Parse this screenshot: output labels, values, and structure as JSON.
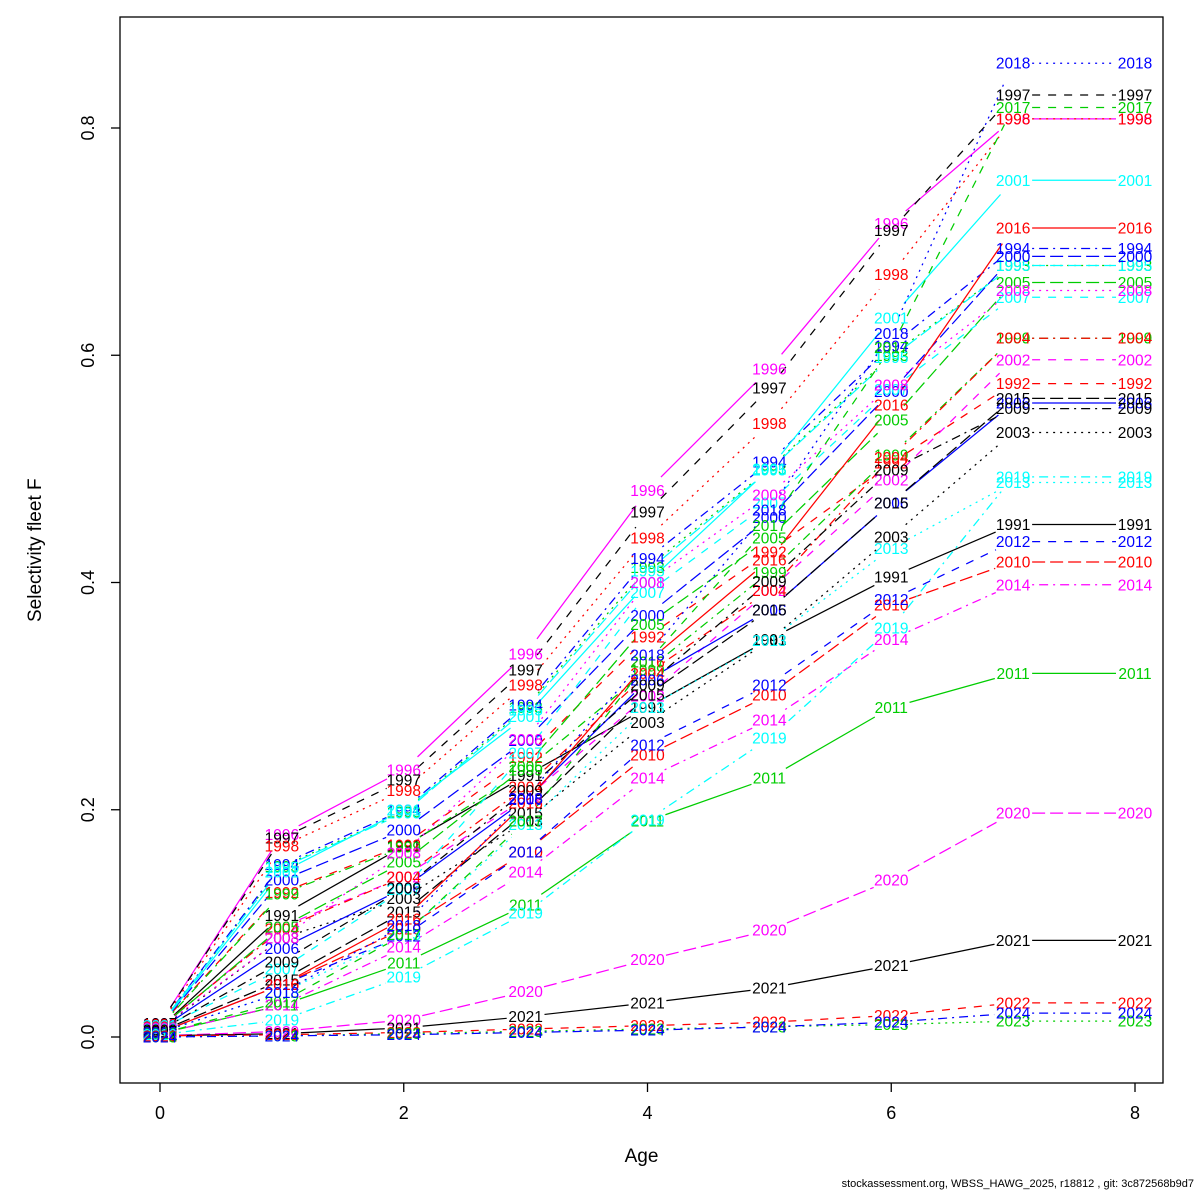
{
  "footer": "stockassessment.org, WBSS_HAWG_2025, r18812 , git: 3c872568b9d7",
  "chart_data": {
    "type": "line",
    "title": "",
    "xlabel": "Age",
    "ylabel": "Selectivity fleet F",
    "x": [
      0,
      1,
      2,
      3,
      4,
      5,
      6,
      7,
      8
    ],
    "xtick_labels": [
      "0",
      "2",
      "4",
      "6",
      "8"
    ],
    "xticks": [
      0,
      2,
      4,
      6,
      8
    ],
    "ytick_labels": [
      "0.0",
      "0.2",
      "0.4",
      "0.6",
      "0.8"
    ],
    "yticks": [
      0.0,
      0.2,
      0.4,
      0.6,
      0.8
    ],
    "xlim": [
      -0.33,
      8.23
    ],
    "ylim": [
      -0.04,
      0.9
    ],
    "grid": false,
    "legend": "year labels drawn on each line at every age point",
    "series": [
      {
        "name": "1991",
        "color": "#000000",
        "dash": "solid",
        "values": [
          0.008,
          0.107,
          0.168,
          0.23,
          0.29,
          0.35,
          0.405,
          0.451,
          0.451
        ]
      },
      {
        "name": "1992",
        "color": "#FF0000",
        "dash": "dashed",
        "values": [
          0.01,
          0.127,
          0.169,
          0.246,
          0.352,
          0.427,
          0.505,
          0.575,
          0.575
        ]
      },
      {
        "name": "1993",
        "color": "#00CD00",
        "dash": "dotted",
        "values": [
          0.011,
          0.15,
          0.198,
          0.29,
          0.413,
          0.5,
          0.6,
          0.679,
          0.679
        ]
      },
      {
        "name": "1994",
        "color": "#0000FF",
        "dash": "dotdash",
        "values": [
          0.011,
          0.152,
          0.2,
          0.292,
          0.421,
          0.506,
          0.608,
          0.694,
          0.694
        ]
      },
      {
        "name": "1995",
        "color": "#00FFFF",
        "dash": "longdash",
        "values": [
          0.011,
          0.149,
          0.197,
          0.288,
          0.41,
          0.499,
          0.598,
          0.679,
          0.679
        ]
      },
      {
        "name": "1996",
        "color": "#FF00FF",
        "dash": "solid",
        "values": [
          0.012,
          0.178,
          0.235,
          0.337,
          0.481,
          0.588,
          0.716,
          0.808,
          0.808
        ]
      },
      {
        "name": "1997",
        "color": "#000000",
        "dash": "dashed",
        "values": [
          0.012,
          0.175,
          0.226,
          0.323,
          0.462,
          0.571,
          0.71,
          0.829,
          0.829
        ]
      },
      {
        "name": "1998",
        "color": "#FF0000",
        "dash": "dotted",
        "values": [
          0.011,
          0.168,
          0.217,
          0.31,
          0.439,
          0.54,
          0.671,
          0.808,
          0.808
        ]
      },
      {
        "name": "1999",
        "color": "#00CD00",
        "dash": "dotdash",
        "values": [
          0.009,
          0.126,
          0.167,
          0.235,
          0.323,
          0.409,
          0.512,
          0.615,
          0.615
        ]
      },
      {
        "name": "2000",
        "color": "#0000FF",
        "dash": "longdash",
        "values": [
          0.01,
          0.138,
          0.182,
          0.261,
          0.371,
          0.457,
          0.568,
          0.687,
          0.687
        ]
      },
      {
        "name": "2001",
        "color": "#00FFFF",
        "dash": "solid",
        "values": [
          0.01,
          0.145,
          0.2,
          0.282,
          0.4,
          0.5,
          0.633,
          0.754,
          0.754
        ]
      },
      {
        "name": "2002",
        "color": "#FF00FF",
        "dash": "dashed",
        "values": [
          0.008,
          0.097,
          0.141,
          0.21,
          0.3,
          0.393,
          0.49,
          0.596,
          0.596
        ]
      },
      {
        "name": "2003",
        "color": "#000000",
        "dash": "dotted",
        "values": [
          0.007,
          0.087,
          0.122,
          0.19,
          0.277,
          0.349,
          0.44,
          0.532,
          0.532
        ]
      },
      {
        "name": "2004",
        "color": "#FF0000",
        "dash": "dotdash",
        "values": [
          0.009,
          0.095,
          0.141,
          0.22,
          0.32,
          0.393,
          0.51,
          0.615,
          0.615
        ]
      },
      {
        "name": "2005",
        "color": "#00CD00",
        "dash": "longdash",
        "values": [
          0.008,
          0.097,
          0.154,
          0.238,
          0.363,
          0.439,
          0.543,
          0.664,
          0.664
        ]
      },
      {
        "name": "2006",
        "color": "#0000FF",
        "dash": "solid",
        "values": [
          0.007,
          0.078,
          0.131,
          0.209,
          0.314,
          0.376,
          0.47,
          0.558,
          0.558
        ]
      },
      {
        "name": "2007",
        "color": "#00FFFF",
        "dash": "dashed",
        "values": [
          0.007,
          0.06,
          0.13,
          0.25,
          0.391,
          0.47,
          0.57,
          0.651,
          0.651
        ]
      },
      {
        "name": "2008",
        "color": "#FF00FF",
        "dash": "dotted",
        "values": [
          0.008,
          0.087,
          0.162,
          0.262,
          0.4,
          0.477,
          0.574,
          0.657,
          0.657
        ]
      },
      {
        "name": "2009",
        "color": "#000000",
        "dash": "dotdash",
        "values": [
          0.006,
          0.066,
          0.131,
          0.217,
          0.31,
          0.401,
          0.499,
          0.553,
          0.553
        ]
      },
      {
        "name": "2010",
        "color": "#FF0000",
        "dash": "longdash",
        "values": [
          0.004,
          0.046,
          0.095,
          0.163,
          0.248,
          0.301,
          0.38,
          0.418,
          0.418
        ]
      },
      {
        "name": "2011",
        "color": "#00CD00",
        "dash": "solid",
        "values": [
          0.003,
          0.028,
          0.065,
          0.116,
          0.19,
          0.228,
          0.29,
          0.32,
          0.32
        ]
      },
      {
        "name": "2012",
        "color": "#0000FF",
        "dash": "dashed",
        "values": [
          0.004,
          0.046,
          0.089,
          0.163,
          0.257,
          0.31,
          0.385,
          0.436,
          0.436
        ]
      },
      {
        "name": "2013",
        "color": "#00FFFF",
        "dash": "dotted",
        "values": [
          0.004,
          0.039,
          0.09,
          0.187,
          0.29,
          0.349,
          0.43,
          0.488,
          0.488
        ]
      },
      {
        "name": "2014",
        "color": "#FF00FF",
        "dash": "dotdash",
        "values": [
          0.003,
          0.028,
          0.079,
          0.145,
          0.228,
          0.279,
          0.35,
          0.398,
          0.398
        ]
      },
      {
        "name": "2015",
        "color": "#000000",
        "dash": "longdash",
        "values": [
          0.005,
          0.05,
          0.11,
          0.197,
          0.301,
          0.376,
          0.47,
          0.562,
          0.562
        ]
      },
      {
        "name": "2016",
        "color": "#FF0000",
        "dash": "solid",
        "values": [
          0.004,
          0.046,
          0.104,
          0.206,
          0.33,
          0.42,
          0.556,
          0.712,
          0.712
        ]
      },
      {
        "name": "2017",
        "color": "#00CD00",
        "dash": "dashed",
        "values": [
          0.003,
          0.031,
          0.09,
          0.19,
          0.33,
          0.45,
          0.607,
          0.818,
          0.818
        ]
      },
      {
        "name": "2018",
        "color": "#0000FF",
        "dash": "dotted",
        "values": [
          0.004,
          0.039,
          0.098,
          0.21,
          0.336,
          0.464,
          0.619,
          0.857,
          0.857
        ]
      },
      {
        "name": "2019",
        "color": "#00FFFF",
        "dash": "dotdash",
        "values": [
          0.002,
          0.015,
          0.053,
          0.109,
          0.191,
          0.263,
          0.36,
          0.493,
          0.493
        ]
      },
      {
        "name": "2020",
        "color": "#FF00FF",
        "dash": "longdash",
        "values": [
          0.001,
          0.005,
          0.015,
          0.04,
          0.068,
          0.094,
          0.138,
          0.197,
          0.197
        ]
      },
      {
        "name": "2021",
        "color": "#000000",
        "dash": "solid",
        "values": [
          0.001,
          0.003,
          0.008,
          0.018,
          0.03,
          0.043,
          0.063,
          0.085,
          0.085
        ]
      },
      {
        "name": "2022",
        "color": "#FF0000",
        "dash": "dashed",
        "values": [
          0.001,
          0.002,
          0.004,
          0.007,
          0.01,
          0.013,
          0.019,
          0.03,
          0.03
        ]
      },
      {
        "name": "2023",
        "color": "#00CD00",
        "dash": "dotted",
        "values": [
          0.0,
          0.001,
          0.003,
          0.005,
          0.007,
          0.009,
          0.011,
          0.014,
          0.014
        ]
      },
      {
        "name": "2024",
        "color": "#0000FF",
        "dash": "dotdash",
        "values": [
          0.0,
          0.001,
          0.002,
          0.004,
          0.006,
          0.009,
          0.013,
          0.021,
          0.021
        ]
      }
    ]
  }
}
